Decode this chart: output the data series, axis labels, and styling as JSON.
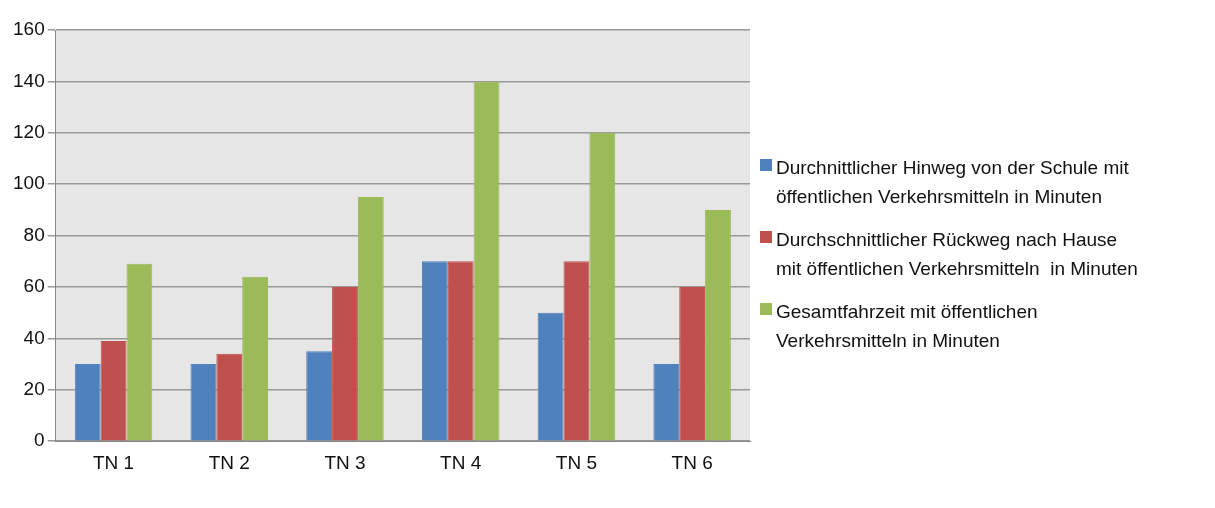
{
  "chart_data": {
    "type": "bar",
    "categories": [
      "TN 1",
      "TN 2",
      "TN 3",
      "TN 4",
      "TN 5",
      "TN 6"
    ],
    "series": [
      {
        "name": "Durchnittlicher Hinweg von der Schule mit öffentlichen Verkehrsmitteln in Minuten",
        "color": "#4f81bd",
        "values": [
          30,
          30,
          35,
          70,
          50,
          30
        ]
      },
      {
        "name": "Durchschnittlicher Rückweg nach Hause mit öffentlichen Verkehrsmitteln  in Minuten",
        "color": "#c0504d",
        "values": [
          39,
          34,
          60,
          70,
          70,
          60
        ]
      },
      {
        "name": "Gesamtfahrzeit mit öffentlichen Verkehrsmitteln in Minuten",
        "color": "#9bbb59",
        "values": [
          69,
          64,
          95,
          140,
          120,
          90
        ]
      }
    ],
    "ylim": [
      0,
      160
    ],
    "yticks": [
      0,
      20,
      40,
      60,
      80,
      100,
      120,
      140,
      160
    ],
    "grid": "y",
    "legend": "right"
  }
}
